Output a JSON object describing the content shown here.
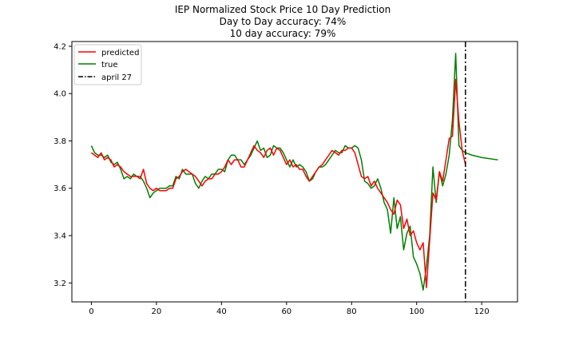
{
  "chart_data": {
    "type": "line",
    "title": "IEP Normalized Stock Price 10 Day Prediction",
    "subtitle_lines": [
      "Day to Day accuracy: 74%",
      "10 day accuracy: 79%"
    ],
    "xlabel": "",
    "ylabel": "",
    "xlim": [
      -6,
      131
    ],
    "ylim": [
      3.12,
      4.22
    ],
    "xticks": [
      0,
      20,
      40,
      60,
      80,
      100,
      120
    ],
    "yticks": [
      3.2,
      3.4,
      3.6,
      3.8,
      4.0,
      4.2
    ],
    "grid": false,
    "legend_position": "upper left",
    "series": [
      {
        "name": "predicted",
        "color": "#ff0000",
        "x": [
          0,
          1,
          2,
          3,
          4,
          5,
          6,
          7,
          8,
          9,
          10,
          11,
          12,
          13,
          14,
          15,
          16,
          17,
          18,
          19,
          20,
          21,
          22,
          23,
          24,
          25,
          26,
          27,
          28,
          29,
          30,
          31,
          32,
          33,
          34,
          35,
          36,
          37,
          38,
          39,
          40,
          41,
          42,
          43,
          44,
          45,
          46,
          47,
          48,
          49,
          50,
          51,
          52,
          53,
          54,
          55,
          56,
          57,
          58,
          59,
          60,
          61,
          62,
          63,
          64,
          65,
          66,
          67,
          68,
          69,
          70,
          71,
          72,
          73,
          74,
          75,
          76,
          77,
          78,
          79,
          80,
          81,
          82,
          83,
          84,
          85,
          86,
          87,
          88,
          89,
          90,
          91,
          92,
          93,
          94,
          95,
          96,
          97,
          98,
          99,
          100,
          101,
          102,
          103,
          104,
          105,
          106,
          107,
          108,
          109,
          110,
          111,
          112,
          113,
          114,
          115
        ],
        "y": [
          3.75,
          3.74,
          3.73,
          3.75,
          3.72,
          3.73,
          3.72,
          3.69,
          3.7,
          3.69,
          3.67,
          3.66,
          3.65,
          3.65,
          3.65,
          3.64,
          3.68,
          3.62,
          3.6,
          3.59,
          3.6,
          3.59,
          3.59,
          3.59,
          3.6,
          3.6,
          3.64,
          3.65,
          3.67,
          3.68,
          3.67,
          3.66,
          3.65,
          3.63,
          3.61,
          3.63,
          3.64,
          3.64,
          3.66,
          3.66,
          3.67,
          3.69,
          3.72,
          3.7,
          3.72,
          3.72,
          3.69,
          3.69,
          3.72,
          3.75,
          3.78,
          3.76,
          3.75,
          3.73,
          3.76,
          3.77,
          3.74,
          3.77,
          3.76,
          3.73,
          3.7,
          3.72,
          3.69,
          3.7,
          3.68,
          3.68,
          3.65,
          3.63,
          3.65,
          3.67,
          3.69,
          3.7,
          3.72,
          3.74,
          3.76,
          3.75,
          3.74,
          3.76,
          3.76,
          3.77,
          3.77,
          3.75,
          3.7,
          3.65,
          3.64,
          3.65,
          3.61,
          3.63,
          3.6,
          3.58,
          3.56,
          3.54,
          3.51,
          3.49,
          3.55,
          3.53,
          3.43,
          3.47,
          3.4,
          3.42,
          3.37,
          3.34,
          3.37,
          3.18,
          3.38,
          3.58,
          3.55,
          3.67,
          3.63,
          3.72,
          3.81,
          3.82,
          4.06,
          3.88,
          3.76,
          3.7
        ]
      },
      {
        "name": "true",
        "color": "#008000",
        "x": [
          0,
          1,
          2,
          3,
          4,
          5,
          6,
          7,
          8,
          9,
          10,
          11,
          12,
          13,
          14,
          15,
          16,
          17,
          18,
          19,
          20,
          21,
          22,
          23,
          24,
          25,
          26,
          27,
          28,
          29,
          30,
          31,
          32,
          33,
          34,
          35,
          36,
          37,
          38,
          39,
          40,
          41,
          42,
          43,
          44,
          45,
          46,
          47,
          48,
          49,
          50,
          51,
          52,
          53,
          54,
          55,
          56,
          57,
          58,
          59,
          60,
          61,
          62,
          63,
          64,
          65,
          66,
          67,
          68,
          69,
          70,
          71,
          72,
          73,
          74,
          75,
          76,
          77,
          78,
          79,
          80,
          81,
          82,
          83,
          84,
          85,
          86,
          87,
          88,
          89,
          90,
          91,
          92,
          93,
          94,
          95,
          96,
          97,
          98,
          99,
          100,
          101,
          102,
          103,
          104,
          105,
          106,
          107,
          108,
          109,
          110,
          111,
          112,
          113,
          114,
          115,
          117,
          120,
          125
        ],
        "y": [
          3.78,
          3.75,
          3.74,
          3.74,
          3.73,
          3.74,
          3.71,
          3.7,
          3.71,
          3.68,
          3.64,
          3.65,
          3.64,
          3.66,
          3.65,
          3.65,
          3.63,
          3.6,
          3.56,
          3.58,
          3.59,
          3.6,
          3.6,
          3.6,
          3.61,
          3.61,
          3.65,
          3.64,
          3.68,
          3.66,
          3.66,
          3.66,
          3.62,
          3.6,
          3.63,
          3.65,
          3.64,
          3.66,
          3.66,
          3.68,
          3.68,
          3.67,
          3.72,
          3.74,
          3.74,
          3.72,
          3.72,
          3.7,
          3.72,
          3.74,
          3.77,
          3.8,
          3.76,
          3.77,
          3.73,
          3.74,
          3.78,
          3.77,
          3.77,
          3.75,
          3.72,
          3.69,
          3.72,
          3.69,
          3.7,
          3.69,
          3.67,
          3.63,
          3.64,
          3.67,
          3.69,
          3.69,
          3.7,
          3.72,
          3.74,
          3.76,
          3.75,
          3.75,
          3.78,
          3.77,
          3.77,
          3.78,
          3.77,
          3.72,
          3.63,
          3.62,
          3.6,
          3.61,
          3.64,
          3.6,
          3.54,
          3.51,
          3.41,
          3.56,
          3.43,
          3.48,
          3.34,
          3.41,
          3.44,
          3.31,
          3.28,
          3.24,
          3.17,
          3.27,
          3.4,
          3.69,
          3.54,
          3.67,
          3.61,
          3.66,
          3.74,
          3.89,
          4.17,
          3.78,
          3.76,
          3.75,
          3.74,
          3.73,
          3.72
        ]
      }
    ],
    "vline": {
      "name": "april 27",
      "x": 115,
      "color": "#000000",
      "style": "dashdot"
    }
  }
}
